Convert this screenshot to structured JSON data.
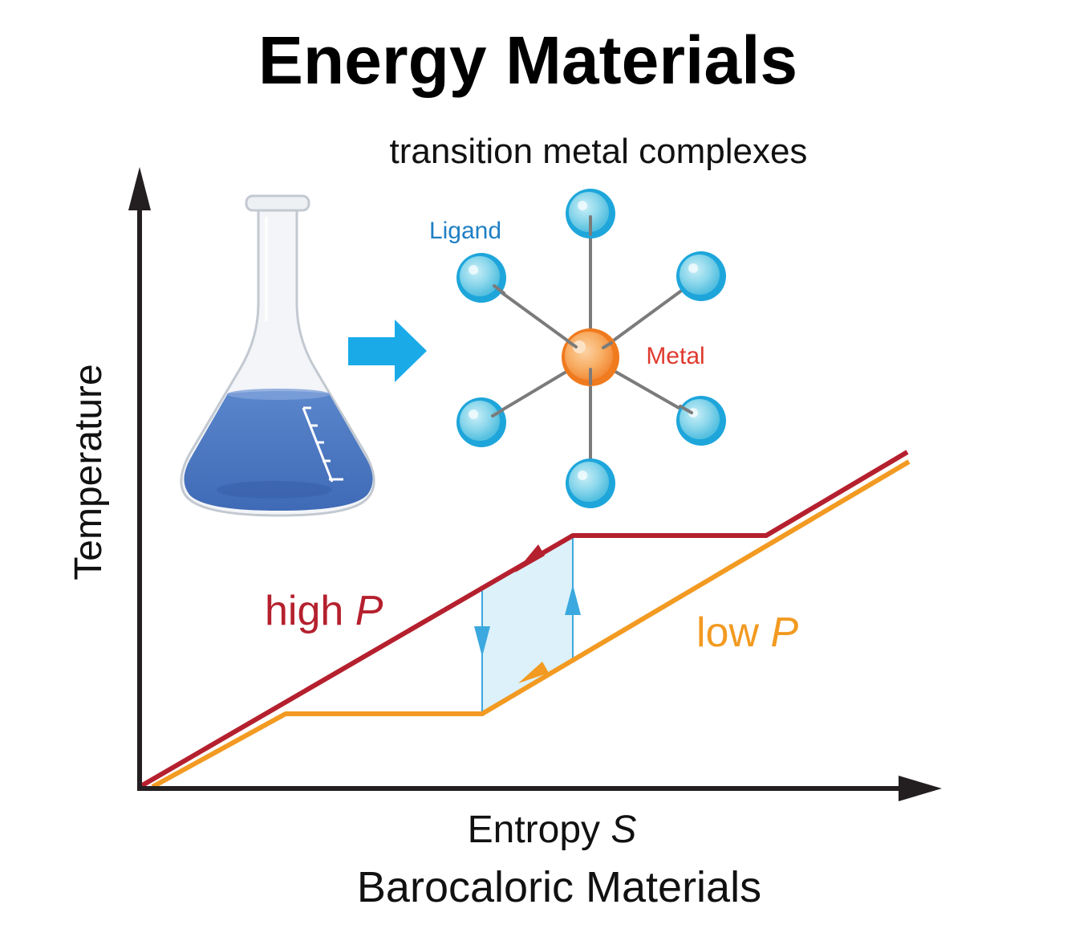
{
  "title": "Energy Materials",
  "subtitle": "transition metal complexes",
  "molecule": {
    "ligand_label": "Ligand",
    "metal_label": "Metal"
  },
  "axes": {
    "y_label": "Temperature",
    "x_label_text": "Entropy ",
    "x_label_symbol": "S"
  },
  "curves": {
    "high": {
      "label_text": "high ",
      "label_symbol": "P"
    },
    "low": {
      "label_text": "low ",
      "label_symbol": "P"
    }
  },
  "bottom_title": "Barocaloric Materials",
  "colors": {
    "high_pressure": "#B5202E",
    "low_pressure": "#F29A21",
    "ligand_blue": "#1EA6DB",
    "ligand_light": "#8ED8EC",
    "metal_orange": "#F07A1E",
    "metal_light": "#F8AE64",
    "arrow_blue": "#1AAAE8",
    "flask_liquid": "#4A78C2",
    "cycle_fill": "#DCF1FA",
    "cycle_arrow": "#3BA9DF",
    "ligand_text": "#1E7FC4",
    "metal_text": "#E03A2E",
    "axis": "#231F20"
  },
  "icons": [
    "erlenmeyer-flask-icon",
    "right-arrow-icon",
    "octahedral-complex-icon"
  ]
}
